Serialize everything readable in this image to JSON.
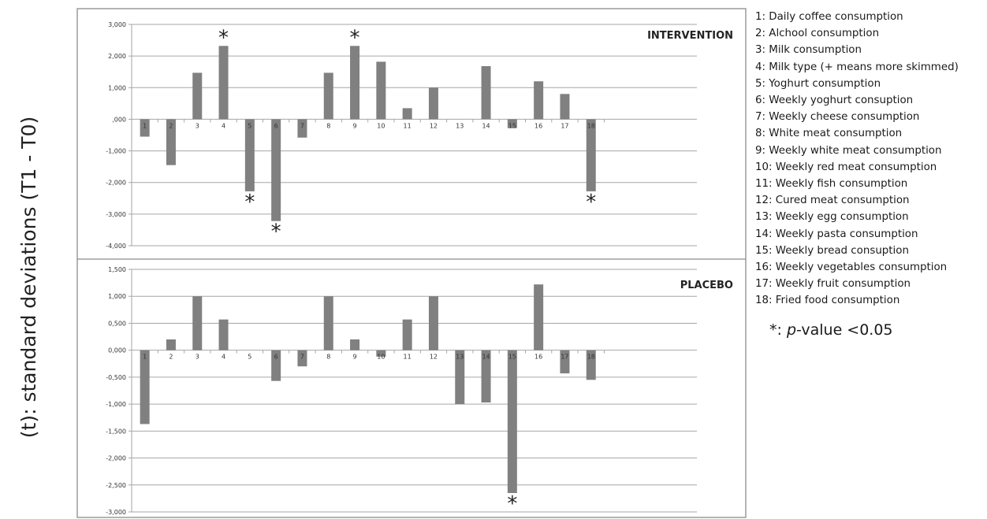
{
  "figure": {
    "ylabel": "(t): standard deviations (T1 - T0)",
    "significance_note": {
      "symbol": "*",
      "separator": ": ",
      "p_italic": "p",
      "text": "-value <0.05"
    },
    "legend": [
      "1: Daily coffee consumption",
      "2: Alchool consumption",
      "3: Milk consumption",
      "4: Milk type (+ means more skimmed)",
      "5: Yoghurt consumption",
      "6: Weekly yoghurt consuption",
      "7: Weekly cheese consumption",
      "8: White meat consumption",
      "9: Weekly white meat consumption",
      "10: Weekly red meat consumption",
      "11: Weekly fish consumption",
      "12: Cured meat consumption",
      "13: Weekly egg consumption",
      "14: Weekly pasta consumption",
      "15: Weekly bread consuption",
      "16: Weekly vegetables consumption",
      "17: Weekly fruit consumption",
      "18: Fried food consumption"
    ],
    "colors": {
      "bar": "#808080",
      "grid": "#a6a6a6",
      "frame": "#8c8c8c",
      "text": "#222222"
    }
  },
  "chart_data": [
    {
      "type": "bar",
      "title": "INTERVENTION",
      "categories": [
        "1",
        "2",
        "3",
        "4",
        "5",
        "6",
        "7",
        "8",
        "9",
        "10",
        "11",
        "12",
        "13",
        "14",
        "15",
        "16",
        "17",
        "18"
      ],
      "values": [
        -0.55,
        -1.45,
        1.47,
        2.32,
        -2.28,
        -3.22,
        -0.58,
        1.47,
        2.32,
        1.82,
        0.35,
        1.0,
        0.0,
        1.68,
        -0.28,
        1.2,
        0.8,
        -2.28
      ],
      "significant": [
        4,
        5,
        6,
        9,
        18
      ],
      "ylim": [
        -4,
        3
      ],
      "yticks": [
        3,
        2,
        1,
        0,
        -1,
        -2,
        -3,
        -4
      ],
      "ytick_labels": [
        "3,000",
        "2,000",
        "1,000",
        ",000",
        "-1,000",
        "-2,000",
        "-3,000",
        "-4,000"
      ],
      "grid": true
    },
    {
      "type": "bar",
      "title": "PLACEBO",
      "categories": [
        "1",
        "2",
        "3",
        "4",
        "5",
        "6",
        "7",
        "8",
        "9",
        "10",
        "11",
        "12",
        "13",
        "14",
        "15",
        "16",
        "17",
        "18"
      ],
      "values": [
        -1.37,
        0.2,
        1.0,
        0.57,
        0.0,
        -0.57,
        -0.3,
        1.0,
        0.2,
        -0.12,
        0.57,
        1.0,
        -1.0,
        -0.97,
        -2.65,
        1.22,
        -0.43,
        -0.55
      ],
      "significant": [
        15
      ],
      "ylim": [
        -3,
        1.5
      ],
      "yticks": [
        1.5,
        1.0,
        0.5,
        0,
        -0.5,
        -1.0,
        -1.5,
        -2.0,
        -2.5,
        -3.0
      ],
      "ytick_labels": [
        "1,500",
        "1,000",
        "0,500",
        "0,000",
        "-0,500",
        "-1,000",
        "-1,500",
        "-2,000",
        "-2,500",
        "-3,000"
      ],
      "grid": true
    }
  ]
}
